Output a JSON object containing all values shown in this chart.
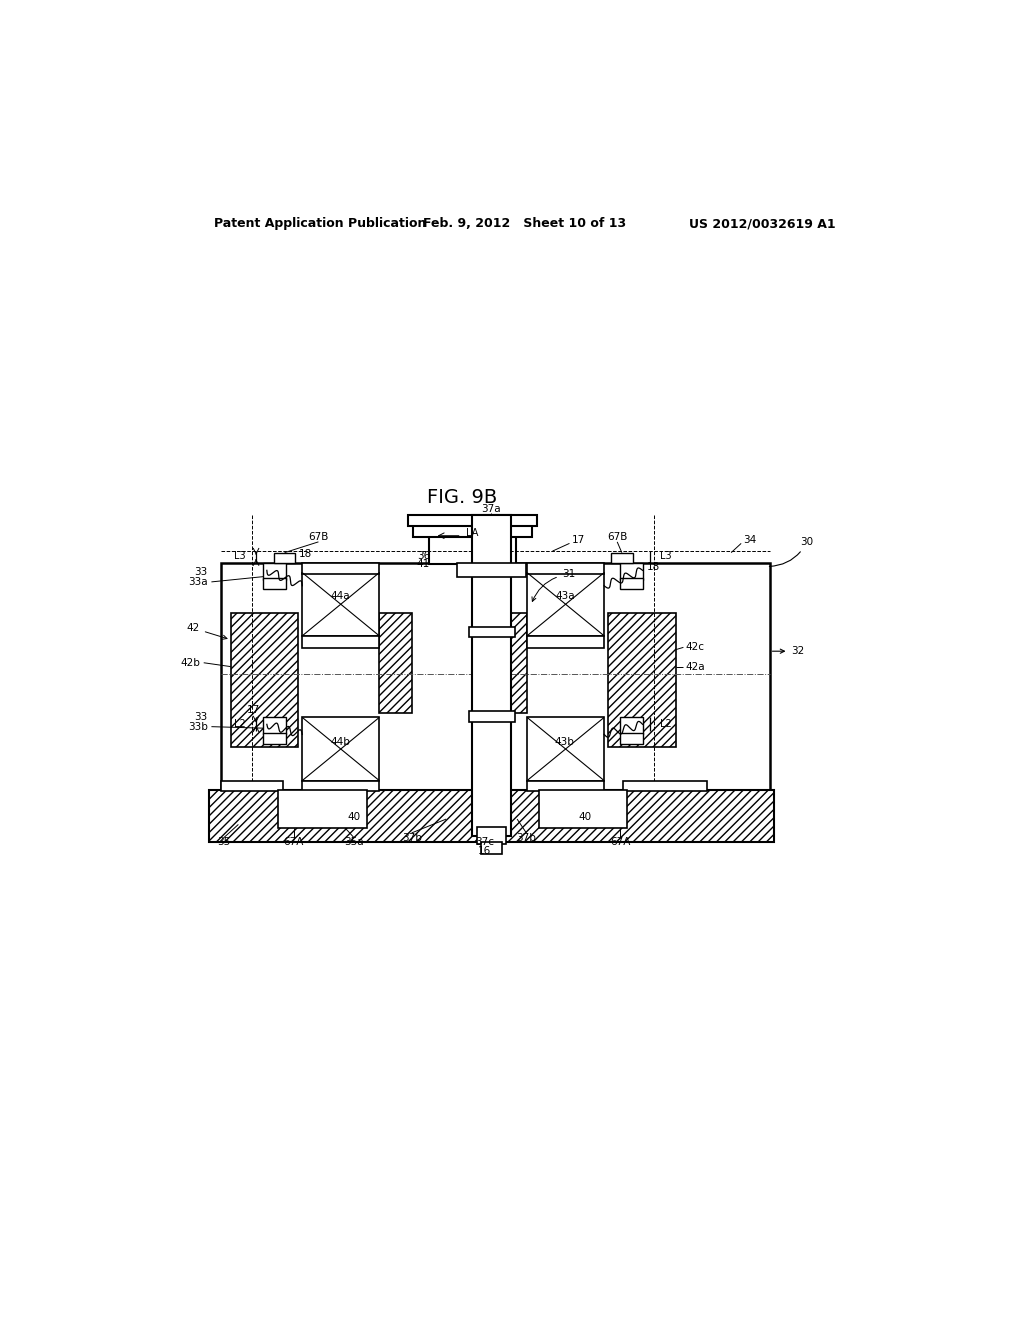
{
  "bg_color": "#ffffff",
  "header_left": "Patent Application Publication",
  "header_center": "Feb. 9, 2012   Sheet 10 of 13",
  "header_right": "US 2012/0032619 A1",
  "fig_title": "FIG. 9B"
}
